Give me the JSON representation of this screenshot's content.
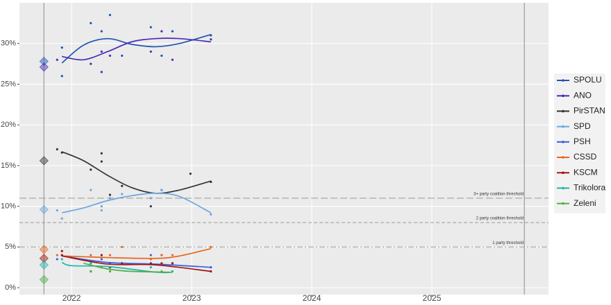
{
  "chart_data": {
    "type": "scatter",
    "xlim": [
      2021.566,
      2025.971
    ],
    "xticks": [
      2022,
      2023,
      2024,
      2025
    ],
    "ylim": [
      -0.85,
      35
    ],
    "yticks": [
      {
        "value": 0,
        "label": "0%"
      },
      {
        "value": 5,
        "label": "5%"
      },
      {
        "value": 10,
        "label": "10%"
      },
      {
        "value": 15,
        "label": "15%"
      },
      {
        "value": 20,
        "label": "20%"
      },
      {
        "value": 25,
        "label": "25%"
      },
      {
        "value": 30,
        "label": "30%"
      }
    ],
    "grid": true,
    "election_dates": [
      2021.77,
      2025.77
    ],
    "thresholds": [
      {
        "value": 11,
        "label": "3+ party coalition threshold"
      },
      {
        "value": 8,
        "label": "2 party coalition threshold"
      },
      {
        "value": 5,
        "label": "1 party threshold"
      }
    ],
    "legend": "right",
    "series": [
      {
        "name": "SPOLU",
        "color": "#1f55b0",
        "election_result": 27.8,
        "x": [
          2021.92,
          2021.92,
          2022.16,
          2022.25,
          2022.32,
          2022.42,
          2022.66,
          2022.75,
          2022.84,
          2023.16
        ],
        "values": [
          29.5,
          26,
          32.5,
          31.5,
          33.5,
          28.5,
          32,
          28.5,
          31.5,
          31
        ],
        "trend_x": [
          2021.92,
          2022.1,
          2022.3,
          2022.5,
          2022.7,
          2022.9,
          2023.16
        ],
        "trend_y": [
          27.6,
          29.8,
          30.6,
          29.9,
          29.6,
          30.0,
          31.1
        ]
      },
      {
        "name": "ANO",
        "color": "#4a2bb5",
        "election_result": 27.1,
        "x": [
          2021.88,
          2022.16,
          2022.25,
          2022.25,
          2022.32,
          2022.66,
          2022.75,
          2022.84,
          2023.16
        ],
        "values": [
          28,
          27.5,
          29,
          26.5,
          28.5,
          29,
          31.5,
          28,
          30.5
        ],
        "trend_x": [
          2021.92,
          2022.1,
          2022.3,
          2022.5,
          2022.7,
          2022.9,
          2023.16
        ],
        "trend_y": [
          28.4,
          28.0,
          29.0,
          30.2,
          30.6,
          30.6,
          30.2
        ]
      },
      {
        "name": "PirSTAN",
        "color": "#333333",
        "election_result": 15.6,
        "x": [
          2021.88,
          2021.92,
          2022.16,
          2022.25,
          2022.25,
          2022.32,
          2022.42,
          2022.66,
          2022.75,
          2022.99,
          2023.16
        ],
        "values": [
          17,
          16.6,
          14.5,
          16.5,
          15.5,
          11.4,
          12.5,
          10,
          12,
          14,
          13
        ],
        "trend_x": [
          2021.92,
          2022.1,
          2022.3,
          2022.5,
          2022.7,
          2022.9,
          2023.16
        ],
        "trend_y": [
          16.7,
          15.6,
          13.8,
          12.3,
          11.6,
          12.0,
          13.1
        ]
      },
      {
        "name": "SPD",
        "color": "#6aa6e0",
        "election_result": 9.6,
        "x": [
          2021.88,
          2021.92,
          2022.16,
          2022.25,
          2022.25,
          2022.32,
          2022.42,
          2022.66,
          2022.75,
          2023.16
        ],
        "values": [
          9.5,
          8.5,
          12,
          10,
          9.5,
          11,
          11.5,
          11,
          12,
          9
        ],
        "trend_x": [
          2021.92,
          2022.1,
          2022.3,
          2022.5,
          2022.7,
          2022.9,
          2023.16
        ],
        "trend_y": [
          9.2,
          9.8,
          10.7,
          11.3,
          11.6,
          11.2,
          9.2
        ]
      },
      {
        "name": "PSH",
        "color": "#3a5ce0",
        "election_result": null,
        "x": [
          2021.88,
          2021.92,
          2022.16,
          2022.25,
          2022.32,
          2022.42,
          2022.66,
          2022.75,
          2022.84,
          2023.16
        ],
        "values": [
          3.5,
          4,
          3,
          3.5,
          3,
          3,
          4,
          4,
          3,
          2.5
        ],
        "trend_x": [
          2021.92,
          2022.3,
          2022.7,
          2023.16
        ],
        "trend_y": [
          3.9,
          3.1,
          2.9,
          2.5
        ]
      },
      {
        "name": "CSSD",
        "color": "#e8661c",
        "election_result": 4.7,
        "x": [
          2021.88,
          2021.92,
          2022.16,
          2022.25,
          2022.32,
          2022.42,
          2022.66,
          2022.75,
          2022.84,
          2023.16
        ],
        "values": [
          4,
          4.5,
          4,
          4,
          4,
          5,
          3.5,
          4,
          4,
          5
        ],
        "trend_x": [
          2021.92,
          2022.3,
          2022.7,
          2022.9,
          2023.16
        ],
        "trend_y": [
          3.9,
          3.7,
          3.6,
          3.9,
          4.8
        ]
      },
      {
        "name": "KSCM",
        "color": "#a01414",
        "election_result": 3.6,
        "x": [
          2021.92,
          2021.92,
          2022.16,
          2022.25,
          2022.32,
          2022.42,
          2022.66,
          2022.75,
          2022.84,
          2023.16
        ],
        "values": [
          4.5,
          4,
          2,
          4,
          2.5,
          3,
          3,
          3,
          3,
          2
        ],
        "trend_x": [
          2021.92,
          2022.3,
          2022.7,
          2023.16
        ],
        "trend_y": [
          3.9,
          2.9,
          2.8,
          2.0
        ]
      },
      {
        "name": "Trikolora",
        "color": "#1fb3b3",
        "election_result": 2.8,
        "x": [
          2021.92,
          2022.16,
          2022.25,
          2022.32,
          2022.66,
          2022.84
        ],
        "values": [
          3.5,
          3,
          2.5,
          2,
          2.5,
          2
        ],
        "trend_x": [
          2021.92,
          2022.0,
          2022.3,
          2022.7,
          2022.84
        ],
        "trend_y": [
          3.1,
          2.7,
          2.6,
          1.9,
          1.9
        ]
      },
      {
        "name": "Zeleni",
        "color": "#4fb043",
        "election_result": 1.0,
        "x": [
          2022.16,
          2022.25,
          2022.32,
          2022.75
        ],
        "values": [
          2,
          2.5,
          2,
          2
        ],
        "trend_x": [
          2022.1,
          2022.3,
          2022.5,
          2022.84
        ],
        "trend_y": [
          3.0,
          2.3,
          2.0,
          1.9
        ]
      }
    ]
  }
}
